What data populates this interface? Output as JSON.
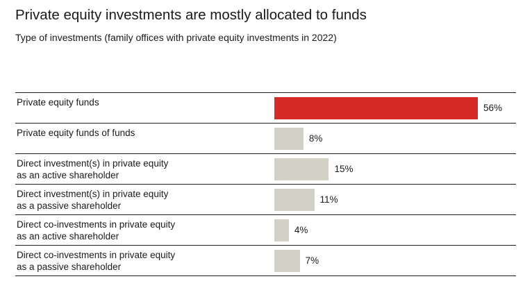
{
  "title": "Private equity investments are mostly allocated to funds",
  "subtitle": "Type of investments (family offices with private equity investments in 2022)",
  "colors": {
    "highlight": "#d52b27",
    "default": "#d3d0c6"
  },
  "chart_data": {
    "type": "bar",
    "orientation": "horizontal",
    "title": "Private equity investments are mostly allocated to funds",
    "subtitle": "Type of investments (family offices with private equity investments in 2022)",
    "categories": [
      "Private equity funds",
      "Private equity funds of funds",
      "Direct investment(s) in private equity\nas an active shareholder",
      "Direct investment(s) in private equity\nas a passive shareholder",
      "Direct co-investments in private equity\nas an active shareholder",
      "Direct co-investments in private equity\nas a passive shareholder"
    ],
    "values": [
      56,
      8,
      15,
      11,
      4,
      7
    ],
    "value_labels": [
      "56%",
      "8%",
      "15%",
      "11%",
      "4%",
      "7%"
    ],
    "highlight_index": 0,
    "unit": "%",
    "xlim": [
      0,
      56
    ],
    "grid": false,
    "legend": "none"
  }
}
